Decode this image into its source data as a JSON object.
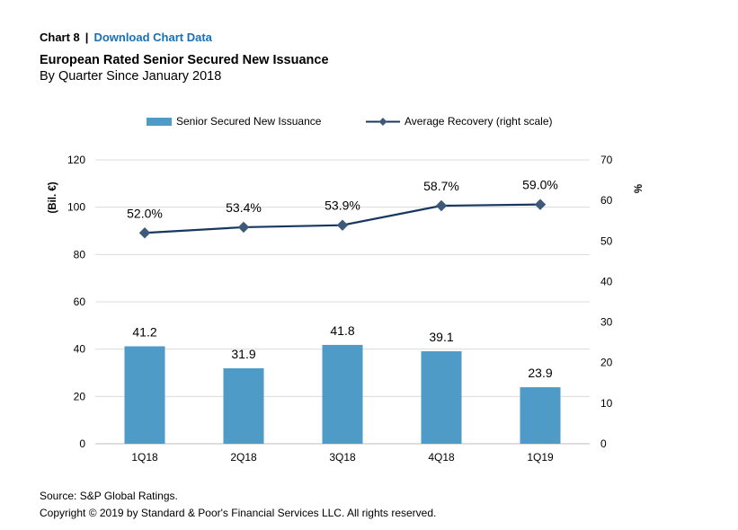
{
  "header": {
    "chart_label": "Chart 8",
    "separator": "|",
    "download_link": "Download Chart Data"
  },
  "chart_data": {
    "type": "bar",
    "title": "European Rated Senior Secured New Issuance",
    "subtitle": "By Quarter Since January 2018",
    "categories": [
      "1Q18",
      "2Q18",
      "3Q18",
      "4Q18",
      "1Q19"
    ],
    "series": [
      {
        "name": "Senior Secured New Issuance",
        "type": "bar",
        "axis": "left",
        "values": [
          41.2,
          31.9,
          41.8,
          39.1,
          23.9
        ],
        "labels": [
          "41.2",
          "31.9",
          "41.8",
          "39.1",
          "23.9"
        ],
        "color": "#4f9bc8"
      },
      {
        "name": "Average Recovery (right scale)",
        "type": "line",
        "axis": "right",
        "values": [
          52.0,
          53.4,
          53.9,
          58.7,
          59.0
        ],
        "labels": [
          "52.0%",
          "53.4%",
          "53.9%",
          "58.7%",
          "59.0%"
        ],
        "color": "#17375e"
      }
    ],
    "ylabel": "(Bil. €)",
    "ylim": [
      0,
      120
    ],
    "yticks": [
      "0",
      "20",
      "40",
      "60",
      "80",
      "100",
      "120"
    ],
    "y2label": "%",
    "y2lim": [
      0,
      70
    ],
    "y2ticks": [
      "0",
      "10",
      "20",
      "30",
      "40",
      "50",
      "60",
      "70"
    ],
    "grid": true,
    "legend_position": "top"
  },
  "footer": {
    "source": "Source: S&P Global Ratings.",
    "copyright": "Copyright © 2019 by Standard & Poor's Financial Services LLC. All rights reserved."
  }
}
